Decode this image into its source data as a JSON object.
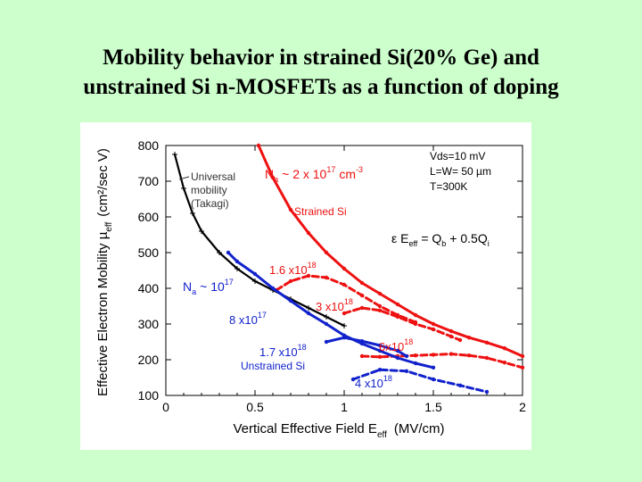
{
  "slide": {
    "title_line1": "Mobility behavior in strained Si(20% Ge) and",
    "title_line2": "unstrained Si n-MOSFETs as a function of doping"
  },
  "colors": {
    "background": "#ccffcc",
    "red": "#ee1111",
    "blue": "#1122cc",
    "black": "#000000"
  },
  "chart_data": {
    "type": "line",
    "xlabel": "Vertical Effective Field E",
    "xlabel_sub": "eff",
    "xlabel_unit": "(MV/cm)",
    "ylabel": "Effective Electron Mobility µ",
    "ylabel_sub": "eff",
    "ylabel_unit": "(cm²/sec V)",
    "xlim": [
      0,
      2
    ],
    "ylim": [
      100,
      800
    ],
    "x_ticks": [
      0,
      0.5,
      1,
      1.5,
      2
    ],
    "x_tick_labels": [
      "0",
      "0.5",
      "1",
      "1.5",
      "2"
    ],
    "y_ticks": [
      100,
      200,
      300,
      400,
      500,
      600,
      700,
      800
    ],
    "y_tick_labels": [
      "100",
      "200",
      "300",
      "400",
      "500",
      "600",
      "700",
      "800"
    ],
    "conditions": [
      "Vds=10 mV",
      "L=W= 50 µm",
      "T=300K"
    ],
    "equation": {
      "lhs": "ε E",
      "lhs_sub": "eff",
      "rhs": "= Q",
      "rhs_sub": "b",
      "tail": "+ 0.5Q",
      "tail_sub": "i"
    },
    "strained_doping": {
      "prefix": "N",
      "prefix_sub": "a",
      "text": "~ 2 x 10",
      "exp": "17",
      "unit": "cm",
      "unit_exp": "-3"
    },
    "unstrained_doping": {
      "prefix": "N",
      "prefix_sub": "a",
      "text": "~ 10",
      "exp": "17"
    },
    "labels": {
      "universal": [
        "Universal",
        "mobility",
        "(Takagi)"
      ],
      "strained": "Strained Si",
      "unstrained": "Unstrained Si"
    },
    "doping_labels": [
      {
        "mant": "1.6 x10",
        "exp": "18",
        "color": "red"
      },
      {
        "mant": "3 x10",
        "exp": "18",
        "color": "red"
      },
      {
        "mant": "6x10",
        "exp": "18",
        "color": "red"
      },
      {
        "mant": "8 x10",
        "exp": "17",
        "color": "blue"
      },
      {
        "mant": "1.7 x10",
        "exp": "18",
        "color": "blue"
      },
      {
        "mant": "4 x10",
        "exp": "18",
        "color": "blue"
      }
    ],
    "series": [
      {
        "name": "Universal mobility (Takagi)",
        "color": "black",
        "style": "solid",
        "x": [
          0.05,
          0.1,
          0.15,
          0.2,
          0.3,
          0.4,
          0.5,
          0.6,
          0.7,
          0.8,
          0.9,
          1.0
        ],
        "y": [
          775,
          680,
          610,
          560,
          500,
          455,
          420,
          395,
          370,
          345,
          320,
          295
        ]
      },
      {
        "name": "Strained Si Na~2x10^17",
        "color": "red",
        "style": "solid",
        "x": [
          0.52,
          0.6,
          0.7,
          0.8,
          0.9,
          1.0,
          1.1,
          1.2,
          1.3,
          1.4,
          1.5,
          1.6,
          1.7,
          1.8,
          1.9,
          2.0
        ],
        "y": [
          800,
          710,
          620,
          555,
          500,
          455,
          415,
          385,
          355,
          325,
          300,
          280,
          262,
          248,
          232,
          210
        ]
      },
      {
        "name": "Strained Si 1.6x10^18",
        "color": "red",
        "style": "dashed",
        "x": [
          0.62,
          0.7,
          0.8,
          0.9,
          1.0,
          1.1,
          1.2,
          1.3,
          1.4
        ],
        "y": [
          395,
          420,
          435,
          430,
          410,
          380,
          350,
          325,
          305
        ]
      },
      {
        "name": "Strained Si 3x10^18",
        "color": "red",
        "style": "dashed",
        "x": [
          1.0,
          1.1,
          1.2,
          1.3,
          1.4,
          1.5,
          1.6,
          1.65
        ],
        "y": [
          330,
          345,
          338,
          320,
          300,
          285,
          265,
          255
        ]
      },
      {
        "name": "Strained Si 6x10^18",
        "color": "red",
        "style": "dashed",
        "x": [
          1.1,
          1.2,
          1.3,
          1.4,
          1.5,
          1.6,
          1.7,
          1.8,
          1.9,
          2.0
        ],
        "y": [
          210,
          208,
          210,
          212,
          214,
          216,
          212,
          205,
          192,
          178
        ]
      },
      {
        "name": "Unstrained Si 10^17",
        "color": "blue",
        "style": "solid",
        "x": [
          0.35,
          0.4,
          0.5,
          0.6,
          0.7,
          0.8,
          0.9,
          1.0,
          1.1,
          1.2,
          1.3,
          1.4,
          1.5
        ],
        "y": [
          500,
          475,
          440,
          400,
          365,
          330,
          300,
          268,
          245,
          225,
          205,
          190,
          178
        ]
      },
      {
        "name": "Unstrained Si 1.7x10^18",
        "color": "blue",
        "style": "solid",
        "x": [
          0.9,
          1.0,
          1.1,
          1.2,
          1.3,
          1.35
        ],
        "y": [
          250,
          262,
          252,
          240,
          225,
          210
        ]
      },
      {
        "name": "Unstrained Si 4x10^18",
        "color": "blue",
        "style": "dashed",
        "x": [
          1.05,
          1.2,
          1.35,
          1.5,
          1.65,
          1.8
        ],
        "y": [
          145,
          172,
          168,
          145,
          128,
          110
        ]
      }
    ]
  }
}
